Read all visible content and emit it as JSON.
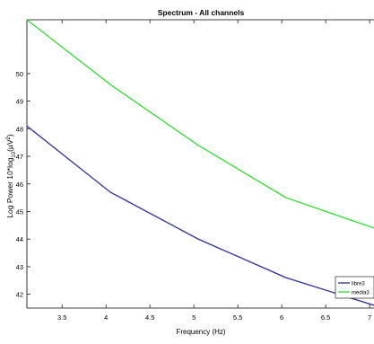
{
  "chart_data": {
    "type": "line",
    "title": "Spectrum - All channels",
    "xlabel": "Frequency (Hz)",
    "ylabel": "Log Power 10*log10(µV²)",
    "xlim": [
      3.1,
      7.05
    ],
    "ylim": [
      41.5,
      51.95
    ],
    "grid": false,
    "legend_position": "bottom-right",
    "x_ticks": [
      3.5,
      4,
      4.5,
      5,
      5.5,
      6,
      6.5,
      7
    ],
    "x_tick_labels": [
      "3.5",
      "4",
      "4.5",
      "5",
      "5.5",
      "6",
      "6.5",
      "7"
    ],
    "y_ticks": [
      42,
      43,
      44,
      45,
      46,
      47,
      48,
      49,
      50
    ],
    "y_tick_labels": [
      "42",
      "43",
      "44",
      "45",
      "46",
      "47",
      "48",
      "49",
      "50"
    ],
    "series": [
      {
        "name": "libre3",
        "color": "#3b3b9e",
        "x": [
          3.1,
          4.05,
          5.05,
          6.05,
          7.05
        ],
        "y": [
          48.1,
          45.7,
          44.0,
          42.6,
          41.6
        ]
      },
      {
        "name": "media3",
        "color": "#3ddc3d",
        "x": [
          3.1,
          4.05,
          5.05,
          6.05,
          7.05
        ],
        "y": [
          51.95,
          49.6,
          47.4,
          45.5,
          44.4
        ]
      }
    ]
  }
}
